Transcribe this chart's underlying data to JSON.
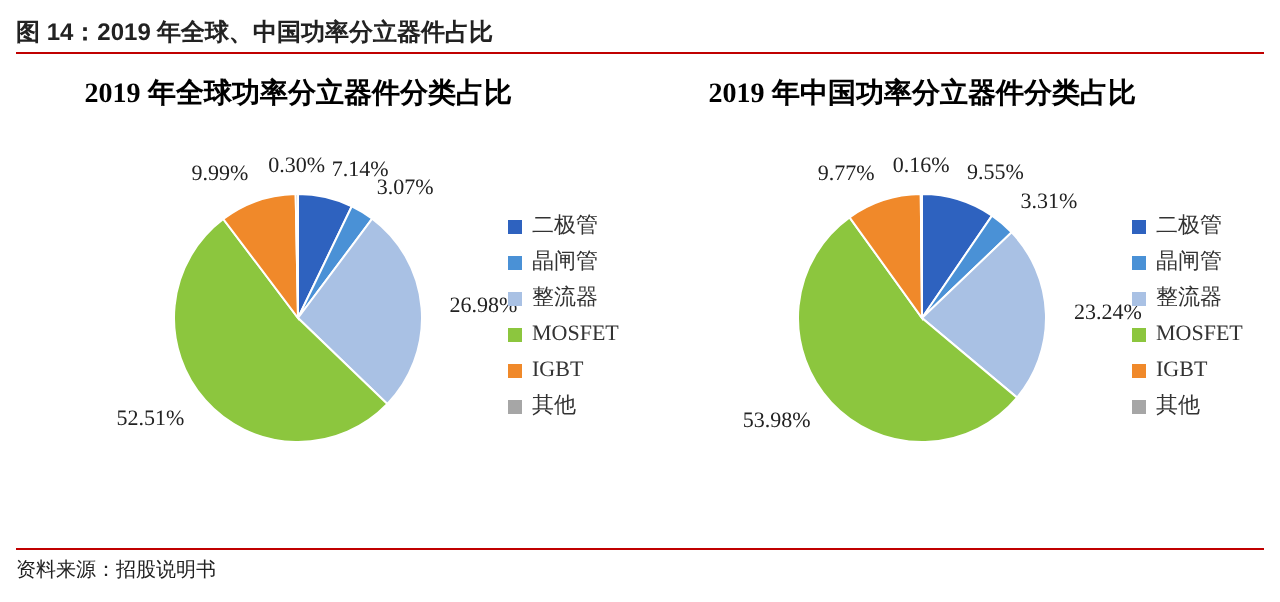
{
  "chart_data": [
    {
      "type": "pie",
      "title": "2019 年全球功率分立器件分类占比",
      "categories": [
        "二极管",
        "晶闸管",
        "整流器",
        "MOSFET",
        "IGBT",
        "其他"
      ],
      "values": [
        7.14,
        3.07,
        26.98,
        52.51,
        9.99,
        0.3
      ],
      "value_labels": [
        "7.14%",
        "3.07%",
        "26.98%",
        "52.51%",
        "9.99%",
        "0.30%"
      ],
      "colors": [
        "#2e62bf",
        "#4a91d6",
        "#a9c1e4",
        "#8cc63e",
        "#f0892a",
        "#a6a6a6"
      ],
      "legend": "right",
      "annotations": [
        "图 14：2019 年全球、中国功率分立器件占比"
      ]
    },
    {
      "type": "pie",
      "title": "2019 年中国功率分立器件分类占比",
      "categories": [
        "二极管",
        "晶闸管",
        "整流器",
        "MOSFET",
        "IGBT",
        "其他"
      ],
      "values": [
        9.55,
        3.31,
        23.24,
        53.98,
        9.77,
        0.16
      ],
      "value_labels": [
        "9.55%",
        "3.31%",
        "23.24%",
        "53.98%",
        "9.77%",
        "0.16%"
      ],
      "colors": [
        "#2e62bf",
        "#4a91d6",
        "#a9c1e4",
        "#8cc63e",
        "#f0892a",
        "#a6a6a6"
      ],
      "legend": "right",
      "annotations": [
        "资料来源：招股说明书"
      ]
    }
  ]
}
